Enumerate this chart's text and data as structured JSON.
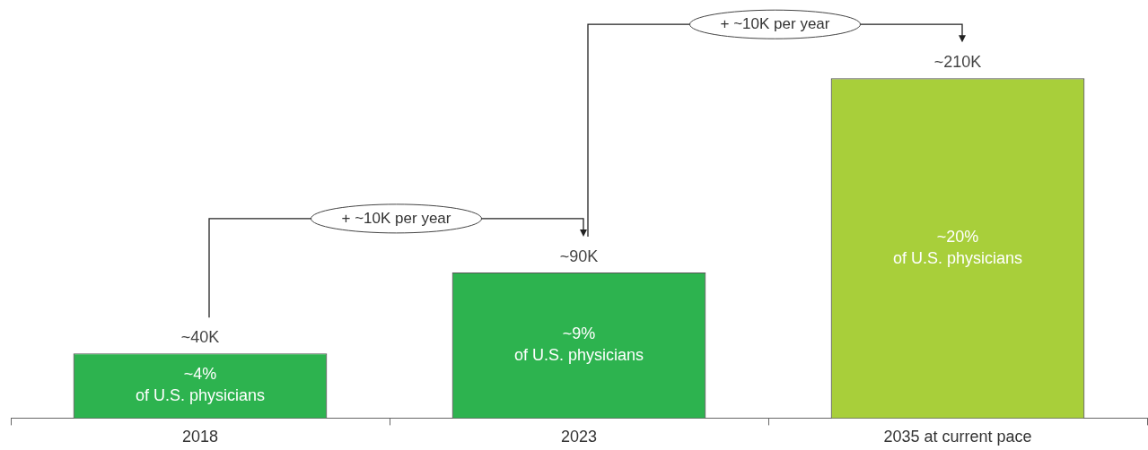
{
  "chart_data": {
    "type": "bar",
    "categories": [
      "2018",
      "2023",
      "2035 at current pace"
    ],
    "values": [
      40,
      90,
      210
    ],
    "colors": [
      "#2db34f",
      "#2db34f",
      "#a8cf3a"
    ],
    "value_labels": [
      "~40K",
      "~90K",
      "~210K"
    ],
    "annotations": [
      "~4%\nof U.S. physicians",
      "~9%\nof U.S. physicians",
      "~20%\nof U.S. physicians",
      "+ ~10K per year",
      "+ ~10K per year"
    ],
    "grid": false,
    "legend": false
  }
}
